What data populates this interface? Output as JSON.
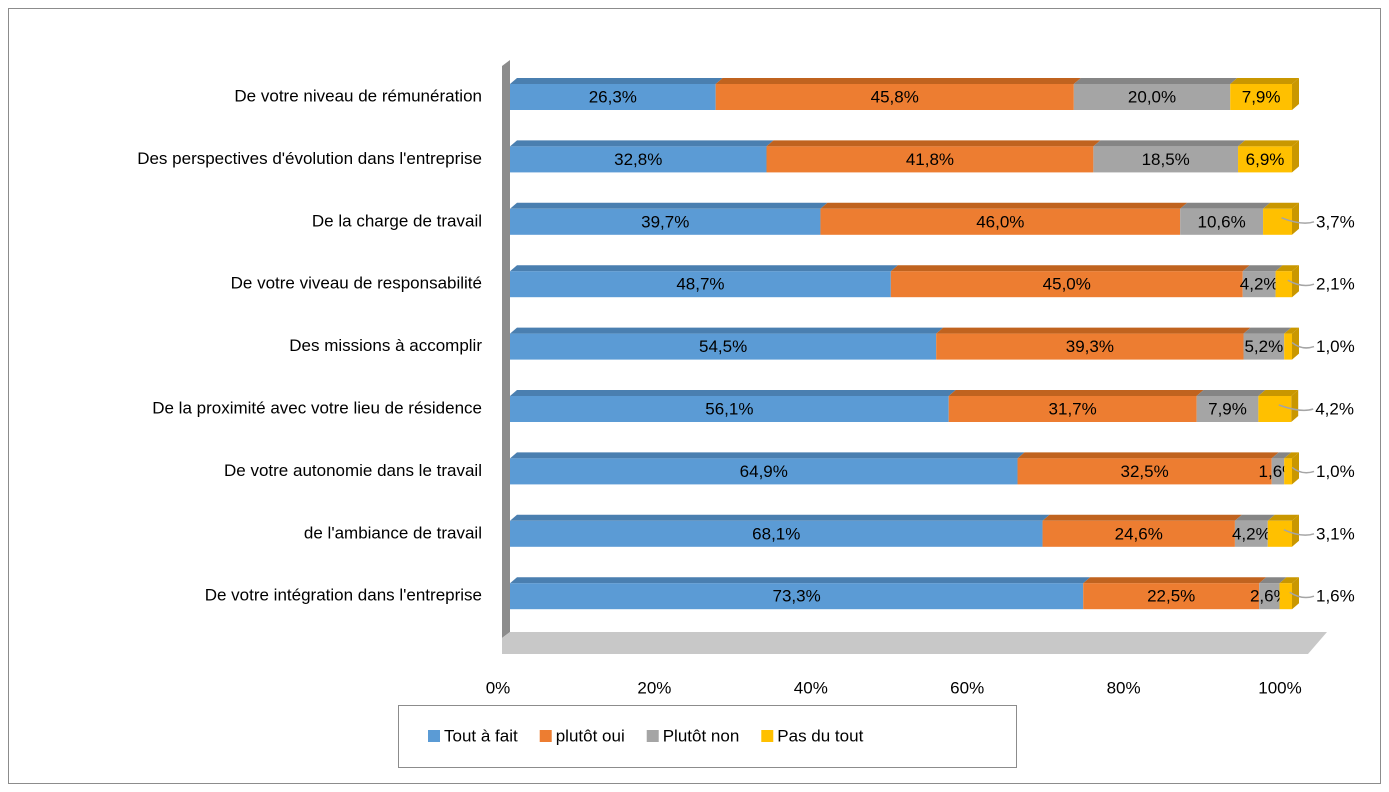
{
  "chart_data": {
    "type": "bar",
    "orientation": "horizontal",
    "stacked": true,
    "categories": [
      "De votre niveau de rémunération",
      "Des perspectives d'évolution dans l'entreprise",
      "De la charge de travail",
      "De votre viveau de responsabilité",
      "Des missions à accomplir",
      "De la proximité avec votre lieu de résidence",
      "De votre autonomie dans le travail",
      "de l'ambiance de travail",
      "De votre intégration dans l'entreprise"
    ],
    "series": [
      {
        "name": "Tout à fait",
        "color": "#5b9bd5",
        "top_color": "#4a7fb0",
        "values": [
          26.3,
          32.8,
          39.7,
          48.7,
          54.5,
          56.1,
          64.9,
          68.1,
          73.3
        ],
        "value_labels": [
          "26,3%",
          "32,8%",
          "39,7%",
          "48,7%",
          "54,5%",
          "56,1%",
          "64,9%",
          "68,1%",
          "73,3%"
        ]
      },
      {
        "name": "plutôt oui",
        "color": "#ed7d31",
        "top_color": "#c0631f",
        "values": [
          45.8,
          41.8,
          46.0,
          45.0,
          39.3,
          31.7,
          32.5,
          24.6,
          22.5
        ],
        "value_labels": [
          "45,8%",
          "41,8%",
          "46,0%",
          "45,0%",
          "39,3%",
          "31,7%",
          "32,5%",
          "24,6%",
          "22,5%"
        ]
      },
      {
        "name": "Plutôt non",
        "color": "#a5a5a5",
        "top_color": "#858585",
        "values": [
          20.0,
          18.5,
          10.6,
          4.2,
          5.2,
          7.9,
          1.6,
          4.2,
          2.6
        ],
        "value_labels": [
          "20,0%",
          "18,5%",
          "10,6%",
          "4,2%",
          "5,2%",
          "7,9%",
          "1,6%",
          "4,2%",
          "2,6%"
        ]
      },
      {
        "name": "Pas du tout",
        "color": "#ffc000",
        "top_color": "#c99700",
        "values": [
          7.9,
          6.9,
          3.7,
          2.1,
          1.0,
          4.2,
          1.0,
          3.1,
          1.6
        ],
        "value_labels": [
          "7,9%",
          "6,9%",
          "3,7%",
          "2,1%",
          "1,0%",
          "4,2%",
          "1,0%",
          "3,1%",
          "1,6%"
        ]
      }
    ],
    "xlim": [
      0,
      100
    ],
    "xticks": [
      {
        "value": 0,
        "label": "0%"
      },
      {
        "value": 20,
        "label": "20%"
      },
      {
        "value": 40,
        "label": "40%"
      },
      {
        "value": 60,
        "label": "60%"
      },
      {
        "value": 80,
        "label": "80%"
      },
      {
        "value": 100,
        "label": "100%"
      }
    ],
    "legend": "bottom"
  }
}
